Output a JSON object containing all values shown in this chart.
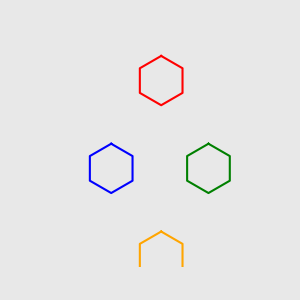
{
  "bg_color": "#e8e8e8",
  "bond_color": "#1a1a1a",
  "N_color": "#1a1acc",
  "O_color": "#cc1a1a",
  "H_color": "#2aaa8a",
  "bond_width": 1.6,
  "dbo": 0.055,
  "fs": 9.5,
  "fsh": 8.5
}
